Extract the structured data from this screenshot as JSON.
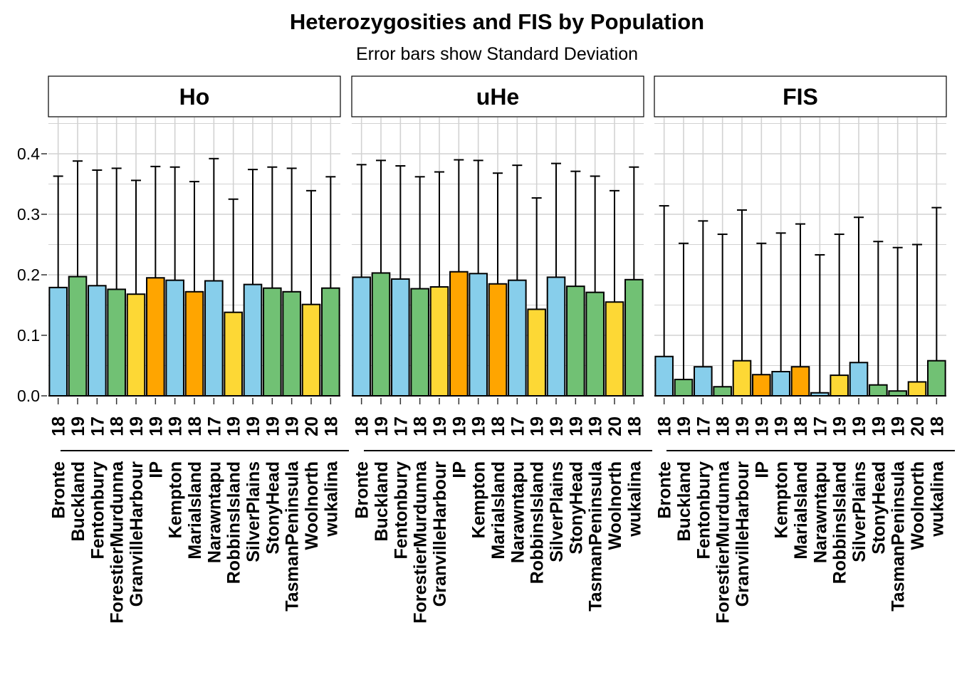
{
  "chart_data": {
    "type": "bar",
    "title": "Heterozygosities and FIS by Population",
    "subtitle": "Error bars show Standard Deviation",
    "ylim": [
      0,
      0.4
    ],
    "y_ticks": [
      "0.0",
      "0.1",
      "0.2",
      "0.3",
      "0.4"
    ],
    "grid": true,
    "error_bars": "sd",
    "colors": {
      "blue": "#87CEEB",
      "green": "#71C174",
      "yellow": "#FDD835",
      "orange": "#FFA500"
    },
    "categories": [
      "Bronte",
      "Buckland",
      "Fentonbury",
      "ForestierMurdunna",
      "GranvilleHarbour",
      "IP",
      "Kempton",
      "MariaIsland",
      "Narawntapu",
      "RobbinsIsland",
      "SilverPlains",
      "StonyHead",
      "TasmanPeninsula",
      "Woolnorth",
      "wukalina"
    ],
    "sample_sizes": [
      "18",
      "19",
      "17",
      "18",
      "19",
      "19",
      "19",
      "18",
      "17",
      "19",
      "19",
      "19",
      "19",
      "20",
      "18"
    ],
    "bar_colors": [
      "blue",
      "green",
      "blue",
      "green",
      "yellow",
      "orange",
      "blue",
      "orange",
      "blue",
      "yellow",
      "blue",
      "green",
      "green",
      "yellow",
      "green"
    ],
    "panels": [
      {
        "name": "Ho",
        "values": [
          0.179,
          0.197,
          0.182,
          0.176,
          0.168,
          0.195,
          0.191,
          0.172,
          0.19,
          0.138,
          0.184,
          0.178,
          0.172,
          0.151,
          0.178
        ],
        "err_upper": [
          0.363,
          0.388,
          0.373,
          0.376,
          0.356,
          0.379,
          0.378,
          0.354,
          0.392,
          0.325,
          0.374,
          0.378,
          0.376,
          0.339,
          0.362
        ]
      },
      {
        "name": "uHe",
        "values": [
          0.196,
          0.203,
          0.193,
          0.177,
          0.18,
          0.205,
          0.202,
          0.185,
          0.191,
          0.143,
          0.196,
          0.181,
          0.171,
          0.155,
          0.192
        ],
        "err_upper": [
          0.382,
          0.389,
          0.38,
          0.362,
          0.37,
          0.39,
          0.389,
          0.368,
          0.381,
          0.327,
          0.384,
          0.371,
          0.363,
          0.339,
          0.378
        ]
      },
      {
        "name": "FIS",
        "values": [
          0.065,
          0.027,
          0.048,
          0.015,
          0.058,
          0.035,
          0.04,
          0.048,
          0.005,
          0.034,
          0.055,
          0.018,
          0.008,
          0.023,
          0.058
        ],
        "err_upper": [
          0.314,
          0.252,
          0.289,
          0.267,
          0.307,
          0.252,
          0.269,
          0.284,
          0.233,
          0.267,
          0.295,
          0.255,
          0.245,
          0.25,
          0.311
        ]
      }
    ]
  }
}
